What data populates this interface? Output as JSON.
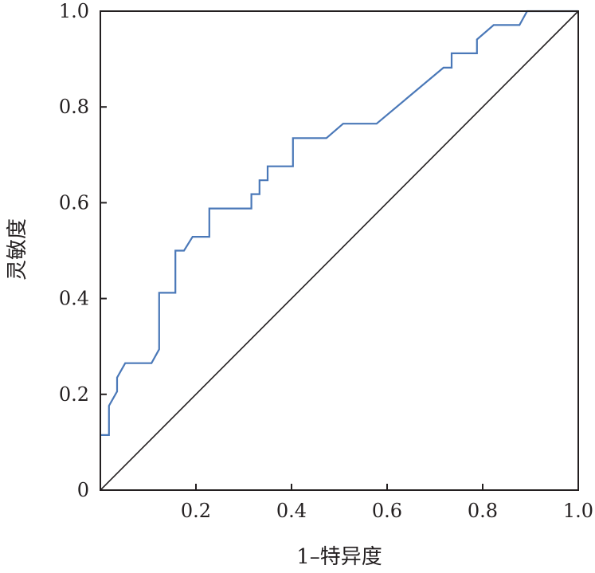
{
  "chart_data": {
    "type": "line",
    "title": "",
    "xlabel": "1–特异度",
    "ylabel": "灵敏度",
    "xlim": [
      0,
      1
    ],
    "ylim": [
      0,
      1
    ],
    "x_ticks": [
      "0.2",
      "0.4",
      "0.6",
      "0.8",
      "1.0"
    ],
    "y_ticks": [
      "0",
      "0.2",
      "0.4",
      "0.6",
      "0.8",
      "1.0"
    ],
    "grid": false,
    "legend": "none",
    "series": [
      {
        "color": "#4a78b8",
        "points": [
          [
            0.0,
            0.115
          ],
          [
            0.018,
            0.115
          ],
          [
            0.018,
            0.176
          ],
          [
            0.035,
            0.206
          ],
          [
            0.035,
            0.235
          ],
          [
            0.052,
            0.265
          ],
          [
            0.107,
            0.265
          ],
          [
            0.123,
            0.294
          ],
          [
            0.123,
            0.412
          ],
          [
            0.157,
            0.412
          ],
          [
            0.157,
            0.5
          ],
          [
            0.175,
            0.5
          ],
          [
            0.193,
            0.529
          ],
          [
            0.228,
            0.529
          ],
          [
            0.228,
            0.588
          ],
          [
            0.316,
            0.588
          ],
          [
            0.316,
            0.618
          ],
          [
            0.333,
            0.618
          ],
          [
            0.333,
            0.647
          ],
          [
            0.35,
            0.647
          ],
          [
            0.35,
            0.676
          ],
          [
            0.403,
            0.676
          ],
          [
            0.403,
            0.735
          ],
          [
            0.473,
            0.735
          ],
          [
            0.508,
            0.765
          ],
          [
            0.578,
            0.765
          ],
          [
            0.718,
            0.882
          ],
          [
            0.735,
            0.882
          ],
          [
            0.735,
            0.912
          ],
          [
            0.788,
            0.912
          ],
          [
            0.788,
            0.941
          ],
          [
            0.823,
            0.971
          ],
          [
            0.877,
            0.971
          ],
          [
            0.893,
            1.0
          ],
          [
            1.0,
            1.0
          ]
        ]
      },
      {
        "color": "#231f20",
        "points": [
          [
            0,
            0
          ],
          [
            1,
            1
          ]
        ]
      }
    ]
  }
}
